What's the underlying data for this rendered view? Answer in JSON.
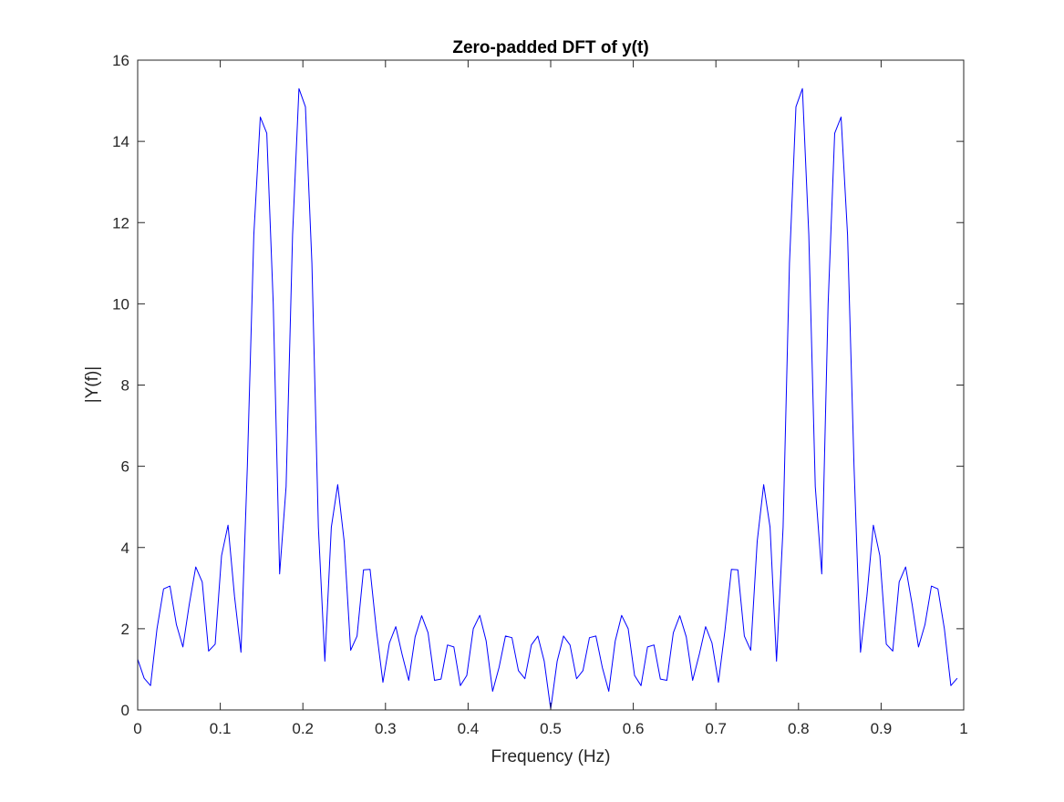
{
  "chart_data": {
    "type": "line",
    "title": "Zero-padded DFT of y(t)",
    "xlabel": "Frequency (Hz)",
    "ylabel": "|Y(f)|",
    "xlim": [
      0,
      1
    ],
    "ylim": [
      0,
      16
    ],
    "grid": false,
    "legend": "none",
    "xticks": [
      0,
      0.1,
      0.2,
      0.3,
      0.4,
      0.5,
      0.6,
      0.7,
      0.8,
      0.9,
      1
    ],
    "xtick_labels": [
      "0",
      "0.1",
      "0.2",
      "0.3",
      "0.4",
      "0.5",
      "0.6",
      "0.7",
      "0.8",
      "0.9",
      "1"
    ],
    "yticks": [
      0,
      2,
      4,
      6,
      8,
      10,
      12,
      14,
      16
    ],
    "ytick_labels": [
      "0",
      "2",
      "4",
      "6",
      "8",
      "10",
      "12",
      "14",
      "16"
    ],
    "series": [
      {
        "color": "#0000ff",
        "x": [
          0,
          0.0078,
          0.0156,
          0.0234,
          0.0313,
          0.0391,
          0.0469,
          0.0547,
          0.0625,
          0.0703,
          0.0781,
          0.0859,
          0.0938,
          0.1016,
          0.1094,
          0.1172,
          0.125,
          0.1328,
          0.1406,
          0.1484,
          0.1563,
          0.1641,
          0.1719,
          0.1797,
          0.1875,
          0.1953,
          0.2031,
          0.2109,
          0.2188,
          0.2266,
          0.2344,
          0.2422,
          0.25,
          0.2578,
          0.2656,
          0.2734,
          0.2813,
          0.2891,
          0.2969,
          0.3047,
          0.3125,
          0.3203,
          0.3281,
          0.3359,
          0.3438,
          0.3516,
          0.3594,
          0.3672,
          0.375,
          0.3828,
          0.3906,
          0.3984,
          0.4063,
          0.4141,
          0.4219,
          0.4297,
          0.4375,
          0.4453,
          0.4531,
          0.4609,
          0.4688,
          0.4766,
          0.4844,
          0.4922,
          0.5,
          0.5078,
          0.5156,
          0.5234,
          0.5313,
          0.5391,
          0.5469,
          0.5547,
          0.5625,
          0.5703,
          0.5781,
          0.5859,
          0.5938,
          0.6016,
          0.6094,
          0.6172,
          0.625,
          0.6328,
          0.6406,
          0.6484,
          0.6563,
          0.6641,
          0.6719,
          0.6797,
          0.6875,
          0.6953,
          0.7031,
          0.7109,
          0.7188,
          0.7266,
          0.7344,
          0.7422,
          0.75,
          0.7578,
          0.7656,
          0.7734,
          0.7813,
          0.7891,
          0.7969,
          0.8047,
          0.8125,
          0.8203,
          0.8281,
          0.8359,
          0.8438,
          0.8516,
          0.8594,
          0.8672,
          0.875,
          0.8828,
          0.8906,
          0.8984,
          0.9063,
          0.9141,
          0.9219,
          0.9297,
          0.9375,
          0.9453,
          0.9531,
          0.9609,
          0.9688,
          0.9766,
          0.9844,
          0.9922
        ],
        "y": [
          1.25,
          0.78,
          0.6,
          2.0,
          2.98,
          3.05,
          2.1,
          1.55,
          2.6,
          3.52,
          3.15,
          1.45,
          1.62,
          3.8,
          4.55,
          2.8,
          1.42,
          6.0,
          11.7,
          14.6,
          14.2,
          10.0,
          3.35,
          5.5,
          11.7,
          15.3,
          14.85,
          11.0,
          4.5,
          1.2,
          4.5,
          5.55,
          4.15,
          1.47,
          1.82,
          3.45,
          3.46,
          1.95,
          0.68,
          1.65,
          2.05,
          1.35,
          0.73,
          1.8,
          2.32,
          1.9,
          0.73,
          0.76,
          1.6,
          1.55,
          0.6,
          0.85,
          2.0,
          2.33,
          1.7,
          0.46,
          1.05,
          1.82,
          1.78,
          0.97,
          0.77,
          1.6,
          1.82,
          1.2,
          0.02,
          1.2,
          1.82,
          1.6,
          0.77,
          0.97,
          1.78,
          1.82,
          1.05,
          0.46,
          1.7,
          2.33,
          2.0,
          0.85,
          0.6,
          1.55,
          1.6,
          0.76,
          0.73,
          1.9,
          2.32,
          1.8,
          0.73,
          1.35,
          2.05,
          1.65,
          0.68,
          1.95,
          3.46,
          3.45,
          1.82,
          1.47,
          4.15,
          5.55,
          4.5,
          1.2,
          4.5,
          11.0,
          14.85,
          15.3,
          11.7,
          5.5,
          3.35,
          10.0,
          14.2,
          14.6,
          11.7,
          6.0,
          1.42,
          2.8,
          4.55,
          3.8,
          1.62,
          1.45,
          3.15,
          3.52,
          2.6,
          1.55,
          2.1,
          3.05,
          2.98,
          2.0,
          0.6,
          0.78
        ]
      }
    ]
  }
}
